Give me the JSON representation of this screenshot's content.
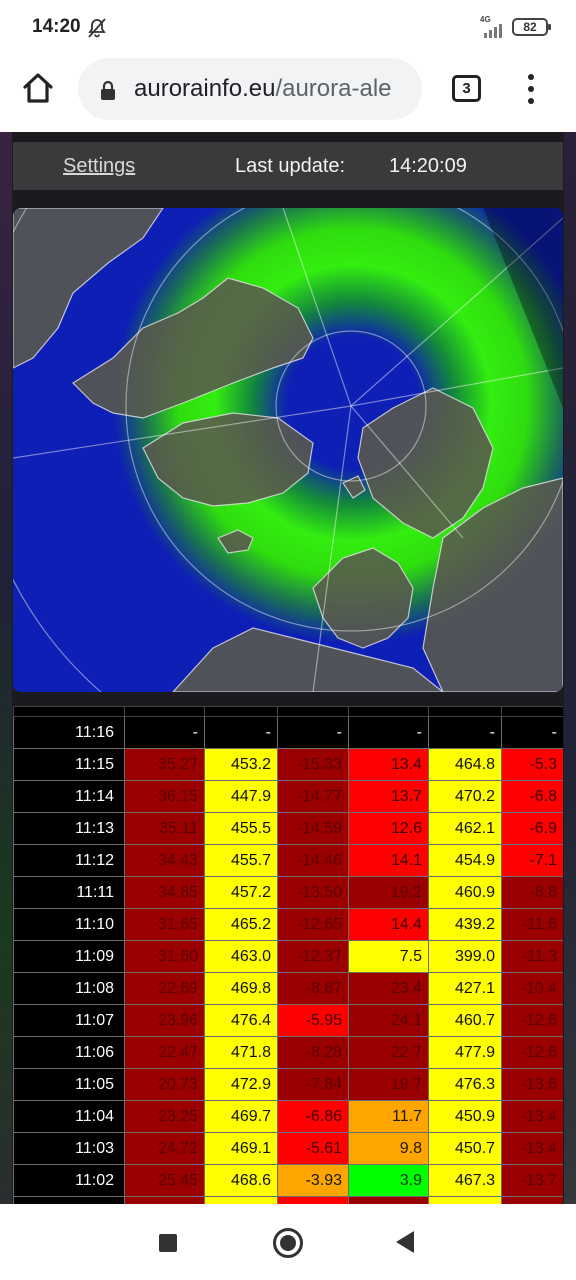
{
  "status_bar": {
    "time": "14:20",
    "network": "4G",
    "battery": "82",
    "icons": [
      "mute-icon",
      "signal-icon",
      "battery-icon"
    ]
  },
  "browser": {
    "url_domain": "aurorainfo.eu",
    "url_path": "/aurora-ale",
    "tab_count": "3",
    "icons": [
      "home-icon",
      "lock-icon",
      "tabs-icon",
      "overflow-menu-icon"
    ]
  },
  "header": {
    "settings_label": "Settings",
    "last_update_label": "Last update:",
    "last_update_time": "14:20:09"
  },
  "colors": {
    "dark_red": "#9b0000",
    "red": "#ff0000",
    "orange": "#ffa500",
    "yellow": "#ffff00",
    "green": "#00ff00",
    "map_ocean": "#0d1fb4",
    "map_land": "#5a5a4e"
  },
  "table": {
    "rows": [
      {
        "time": "11:16",
        "cells": [
          {
            "v": "-",
            "c": "blank"
          },
          {
            "v": "-",
            "c": "blank"
          },
          {
            "v": "-",
            "c": "blank"
          },
          {
            "v": "-",
            "c": "blank"
          },
          {
            "v": "-",
            "c": "blank"
          },
          {
            "v": "-",
            "c": "blank"
          }
        ]
      },
      {
        "time": "11:15",
        "cells": [
          {
            "v": "35.27",
            "c": "dr"
          },
          {
            "v": "453.2",
            "c": "y"
          },
          {
            "v": "-15.33",
            "c": "dr"
          },
          {
            "v": "13.4",
            "c": "r"
          },
          {
            "v": "464.8",
            "c": "y"
          },
          {
            "v": "-5.3",
            "c": "r"
          }
        ]
      },
      {
        "time": "11:14",
        "cells": [
          {
            "v": "36.15",
            "c": "dr"
          },
          {
            "v": "447.9",
            "c": "y"
          },
          {
            "v": "-14.77",
            "c": "dr"
          },
          {
            "v": "13.7",
            "c": "r"
          },
          {
            "v": "470.2",
            "c": "y"
          },
          {
            "v": "-6.8",
            "c": "r"
          }
        ]
      },
      {
        "time": "11:13",
        "cells": [
          {
            "v": "35.11",
            "c": "dr"
          },
          {
            "v": "455.5",
            "c": "y"
          },
          {
            "v": "-14.59",
            "c": "dr"
          },
          {
            "v": "12.6",
            "c": "r"
          },
          {
            "v": "462.1",
            "c": "y"
          },
          {
            "v": "-6.9",
            "c": "r"
          }
        ]
      },
      {
        "time": "11:12",
        "cells": [
          {
            "v": "34.43",
            "c": "dr"
          },
          {
            "v": "455.7",
            "c": "y"
          },
          {
            "v": "-14.46",
            "c": "dr"
          },
          {
            "v": "14.1",
            "c": "r"
          },
          {
            "v": "454.9",
            "c": "y"
          },
          {
            "v": "-7.1",
            "c": "r"
          }
        ]
      },
      {
        "time": "11:11",
        "cells": [
          {
            "v": "34.85",
            "c": "dr"
          },
          {
            "v": "457.2",
            "c": "y"
          },
          {
            "v": "-13.50",
            "c": "dr"
          },
          {
            "v": "19.2",
            "c": "dr"
          },
          {
            "v": "460.9",
            "c": "y"
          },
          {
            "v": "-8.8",
            "c": "dr"
          }
        ]
      },
      {
        "time": "11:10",
        "cells": [
          {
            "v": "31.65",
            "c": "dr"
          },
          {
            "v": "465.2",
            "c": "y"
          },
          {
            "v": "-12.65",
            "c": "dr"
          },
          {
            "v": "14.4",
            "c": "r"
          },
          {
            "v": "439.2",
            "c": "y"
          },
          {
            "v": "-11.6",
            "c": "dr"
          }
        ]
      },
      {
        "time": "11:09",
        "cells": [
          {
            "v": "31.60",
            "c": "dr"
          },
          {
            "v": "463.0",
            "c": "y"
          },
          {
            "v": "-12.37",
            "c": "dr"
          },
          {
            "v": "7.5",
            "c": "y"
          },
          {
            "v": "399.0",
            "c": "y"
          },
          {
            "v": "-11.3",
            "c": "dr"
          }
        ]
      },
      {
        "time": "11:08",
        "cells": [
          {
            "v": "22.69",
            "c": "dr"
          },
          {
            "v": "469.8",
            "c": "y"
          },
          {
            "v": "-8.87",
            "c": "dr"
          },
          {
            "v": "23.4",
            "c": "dr"
          },
          {
            "v": "427.1",
            "c": "y"
          },
          {
            "v": "-10.4",
            "c": "dr"
          }
        ]
      },
      {
        "time": "11:07",
        "cells": [
          {
            "v": "23.96",
            "c": "dr"
          },
          {
            "v": "476.4",
            "c": "y"
          },
          {
            "v": "-5.95",
            "c": "r"
          },
          {
            "v": "24.1",
            "c": "dr"
          },
          {
            "v": "460.7",
            "c": "y"
          },
          {
            "v": "-12.6",
            "c": "dr"
          }
        ]
      },
      {
        "time": "11:06",
        "cells": [
          {
            "v": "22.47",
            "c": "dr"
          },
          {
            "v": "471.8",
            "c": "y"
          },
          {
            "v": "-8.28",
            "c": "dr"
          },
          {
            "v": "22.7",
            "c": "dr"
          },
          {
            "v": "477.9",
            "c": "y"
          },
          {
            "v": "-12.6",
            "c": "dr"
          }
        ]
      },
      {
        "time": "11:05",
        "cells": [
          {
            "v": "20.73",
            "c": "dr"
          },
          {
            "v": "472.9",
            "c": "y"
          },
          {
            "v": "-7.84",
            "c": "dr"
          },
          {
            "v": "19.7",
            "c": "dr"
          },
          {
            "v": "476.3",
            "c": "y"
          },
          {
            "v": "-13.6",
            "c": "dr"
          }
        ]
      },
      {
        "time": "11:04",
        "cells": [
          {
            "v": "23.25",
            "c": "dr"
          },
          {
            "v": "469.7",
            "c": "y"
          },
          {
            "v": "-6.86",
            "c": "r"
          },
          {
            "v": "11.7",
            "c": "o"
          },
          {
            "v": "450.9",
            "c": "y"
          },
          {
            "v": "-13.4",
            "c": "dr"
          }
        ]
      },
      {
        "time": "11:03",
        "cells": [
          {
            "v": "24.72",
            "c": "dr"
          },
          {
            "v": "469.1",
            "c": "y"
          },
          {
            "v": "-5.61",
            "c": "r"
          },
          {
            "v": "9.8",
            "c": "o"
          },
          {
            "v": "450.7",
            "c": "y"
          },
          {
            "v": "-13.4",
            "c": "dr"
          }
        ]
      },
      {
        "time": "11:02",
        "cells": [
          {
            "v": "25.45",
            "c": "dr"
          },
          {
            "v": "468.6",
            "c": "y"
          },
          {
            "v": "-3.93",
            "c": "o"
          },
          {
            "v": "3.9",
            "c": "g"
          },
          {
            "v": "467.3",
            "c": "y"
          },
          {
            "v": "-13.7",
            "c": "dr"
          }
        ]
      },
      {
        "time": "",
        "cells": [
          {
            "v": "",
            "c": "dr"
          },
          {
            "v": "",
            "c": "y"
          },
          {
            "v": "",
            "c": "r"
          },
          {
            "v": "",
            "c": "dr"
          },
          {
            "v": "",
            "c": "y"
          },
          {
            "v": "",
            "c": "dr"
          }
        ]
      }
    ]
  },
  "nav_bar": {
    "icons": [
      "recent-apps-icon",
      "home-circle-icon",
      "back-icon"
    ]
  }
}
